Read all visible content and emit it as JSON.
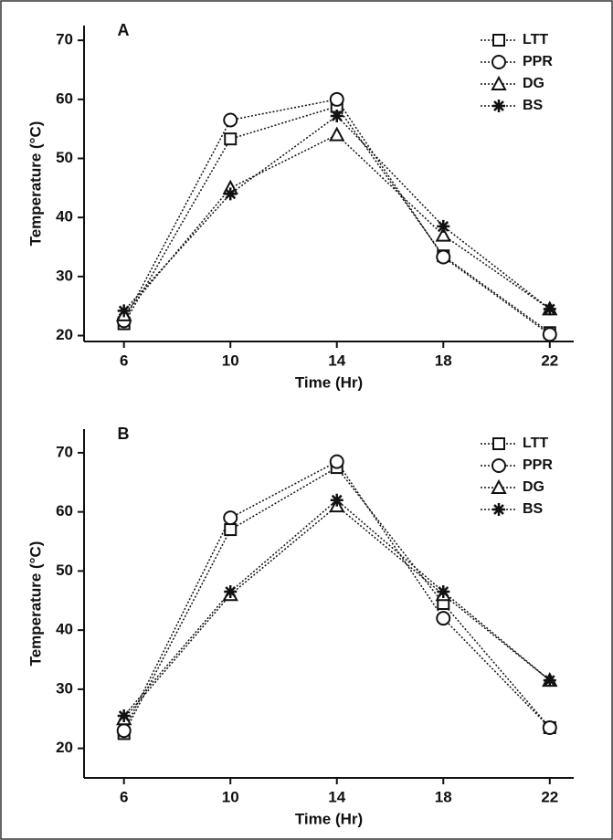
{
  "chart_data": [
    {
      "type": "line",
      "label": "A",
      "x_label": "Time (Hr)",
      "y_label": "Temperature (°C)",
      "x": [
        6,
        10,
        14,
        18,
        22
      ],
      "xlim": [
        4.5,
        22.9
      ],
      "xticks": [
        6,
        10,
        14,
        18,
        22
      ],
      "ylim": [
        19,
        72.5
      ],
      "yticks": [
        20,
        30,
        40,
        50,
        60,
        70
      ],
      "legend": "upper right",
      "series": [
        {
          "name": "LTT",
          "color": "#111111",
          "marker": "square",
          "values": [
            22,
            53.3,
            58.8,
            33.5,
            20.5
          ]
        },
        {
          "name": "PPR",
          "color": "#111111",
          "marker": "circle",
          "values": [
            22.5,
            56.5,
            60,
            33.3,
            20.2
          ]
        },
        {
          "name": "DG",
          "color": "#111111",
          "marker": "triangle",
          "values": [
            23.5,
            45,
            54,
            37,
            24.5
          ]
        },
        {
          "name": "BS",
          "color": "#111111",
          "marker": "star",
          "values": [
            24.2,
            44,
            57.2,
            38.5,
            24.5
          ]
        }
      ]
    },
    {
      "type": "line",
      "label": "B",
      "x_label": "Time (Hr)",
      "y_label": "Temperature (°C)",
      "x": [
        6,
        10,
        14,
        18,
        22
      ],
      "xlim": [
        4.5,
        22.9
      ],
      "xticks": [
        6,
        10,
        14,
        18,
        22
      ],
      "ylim": [
        15,
        74
      ],
      "yticks": [
        20,
        30,
        40,
        50,
        60,
        70
      ],
      "legend": "upper right",
      "series": [
        {
          "name": "LTT",
          "color": "#111111",
          "marker": "square",
          "values": [
            22.5,
            57,
            67.5,
            44.5,
            23.5
          ]
        },
        {
          "name": "PPR",
          "color": "#111111",
          "marker": "circle",
          "values": [
            23,
            59,
            68.5,
            42,
            23.5
          ]
        },
        {
          "name": "DG",
          "color": "#111111",
          "marker": "triangle",
          "values": [
            25,
            46,
            61,
            46,
            31.5
          ]
        },
        {
          "name": "BS",
          "color": "#111111",
          "marker": "star",
          "values": [
            25.5,
            46.5,
            62,
            46.5,
            31.5
          ]
        }
      ]
    }
  ]
}
